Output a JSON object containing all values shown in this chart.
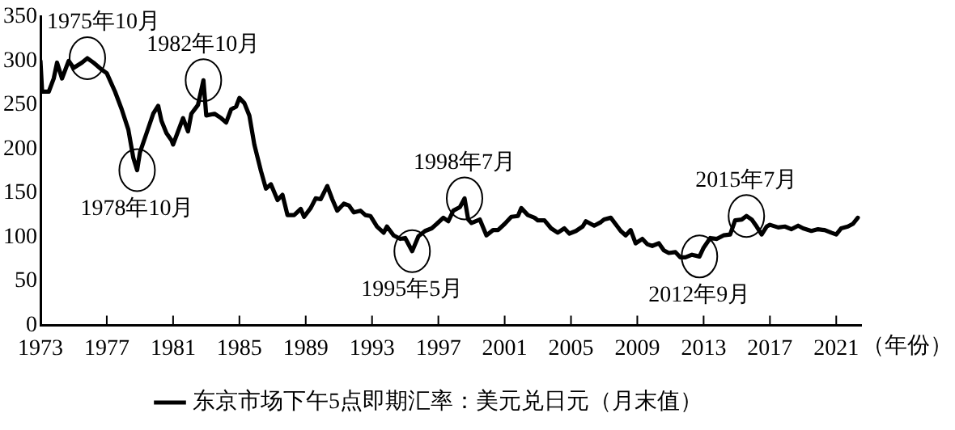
{
  "chart_data": {
    "type": "line",
    "xlabel": "（年份）",
    "legend": "bottom",
    "grid": false,
    "marker": "none",
    "line_style": "solid",
    "xlim": [
      1973,
      2022.5
    ],
    "xticks": [
      1973,
      1977,
      1981,
      1985,
      1989,
      1993,
      1997,
      2001,
      2005,
      2009,
      2013,
      2017,
      2021
    ],
    "ylim": [
      0,
      350
    ],
    "yticks": [
      0,
      50,
      100,
      150,
      200,
      250,
      300,
      350
    ],
    "x": [
      1973.0,
      1973.1,
      1973.5,
      1973.8,
      1974.0,
      1974.3,
      1974.7,
      1975.0,
      1975.5,
      1975.83,
      1976.2,
      1976.7,
      1977.0,
      1977.5,
      1977.9,
      1978.3,
      1978.6,
      1978.83,
      1979.0,
      1979.4,
      1979.8,
      1980.1,
      1980.3,
      1980.6,
      1980.9,
      1981.0,
      1981.3,
      1981.6,
      1981.9,
      1982.1,
      1982.5,
      1982.83,
      1983.0,
      1983.5,
      1983.9,
      1984.2,
      1984.5,
      1984.8,
      1985.0,
      1985.3,
      1985.6,
      1985.9,
      1986.3,
      1986.6,
      1986.9,
      1987.3,
      1987.6,
      1987.9,
      1988.3,
      1988.7,
      1988.9,
      1989.3,
      1989.6,
      1989.9,
      1990.3,
      1990.6,
      1990.9,
      1991.3,
      1991.6,
      1991.9,
      1992.3,
      1992.6,
      1992.9,
      1993.3,
      1993.7,
      1993.9,
      1994.3,
      1994.7,
      1995.0,
      1995.42,
      1995.8,
      1996.2,
      1996.6,
      1996.9,
      1997.3,
      1997.6,
      1997.9,
      1998.3,
      1998.58,
      1998.8,
      1999.0,
      1999.5,
      1999.9,
      2000.3,
      2000.6,
      2001.0,
      2001.4,
      2001.8,
      2002.0,
      2002.4,
      2002.8,
      2003.0,
      2003.4,
      2003.8,
      2004.2,
      2004.6,
      2004.9,
      2005.3,
      2005.7,
      2005.9,
      2006.4,
      2006.8,
      2007.0,
      2007.4,
      2007.8,
      2008.0,
      2008.3,
      2008.6,
      2008.9,
      2009.3,
      2009.6,
      2009.9,
      2010.3,
      2010.6,
      2010.9,
      2011.3,
      2011.6,
      2011.9,
      2012.3,
      2012.75,
      2013.0,
      2013.4,
      2013.8,
      2014.2,
      2014.6,
      2014.9,
      2015.3,
      2015.58,
      2015.9,
      2016.2,
      2016.5,
      2016.8,
      2017.0,
      2017.5,
      2017.9,
      2018.3,
      2018.7,
      2019.0,
      2019.5,
      2019.9,
      2020.3,
      2020.7,
      2021.0,
      2021.3,
      2021.7,
      2022.0,
      2022.3
    ],
    "series": [
      {
        "name": "东京市场下午5点即期汇率：美元兑日元（月末值）",
        "color": "#000000",
        "values": [
          300,
          265,
          265,
          280,
          298,
          280,
          300,
          292,
          298,
          303,
          298,
          290,
          286,
          265,
          245,
          222,
          190,
          176,
          196,
          218,
          240,
          249,
          232,
          218,
          210,
          205,
          220,
          235,
          220,
          240,
          250,
          278,
          238,
          240,
          235,
          230,
          245,
          248,
          258,
          252,
          238,
          205,
          175,
          155,
          160,
          142,
          148,
          125,
          125,
          132,
          123,
          133,
          144,
          143,
          158,
          143,
          130,
          138,
          136,
          128,
          130,
          125,
          124,
          112,
          105,
          112,
          102,
          98,
          99,
          84,
          101,
          107,
          110,
          115,
          122,
          118,
          130,
          134,
          144,
          120,
          116,
          120,
          102,
          108,
          108,
          115,
          123,
          124,
          133,
          125,
          122,
          119,
          119,
          110,
          105,
          110,
          104,
          107,
          112,
          118,
          113,
          117,
          120,
          122,
          112,
          107,
          102,
          108,
          93,
          98,
          92,
          90,
          93,
          85,
          82,
          83,
          77,
          77,
          80,
          78,
          88,
          99,
          98,
          102,
          103,
          119,
          120,
          124,
          120,
          112,
          103,
          112,
          114,
          111,
          112,
          109,
          113,
          110,
          107,
          109,
          108,
          105,
          103,
          110,
          112,
          115,
          122
        ]
      }
    ],
    "annotations": [
      {
        "text": "1975年10月",
        "x": 1975.83,
        "y": 303
      },
      {
        "text": "1978年10月",
        "x": 1978.83,
        "y": 176
      },
      {
        "text": "1982年10月",
        "x": 1982.83,
        "y": 278
      },
      {
        "text": "1995年5月",
        "x": 1995.42,
        "y": 84
      },
      {
        "text": "1998年7月",
        "x": 1998.58,
        "y": 144
      },
      {
        "text": "2012年9月",
        "x": 2012.75,
        "y": 78
      },
      {
        "text": "2015年7月",
        "x": 2015.58,
        "y": 124
      }
    ]
  }
}
